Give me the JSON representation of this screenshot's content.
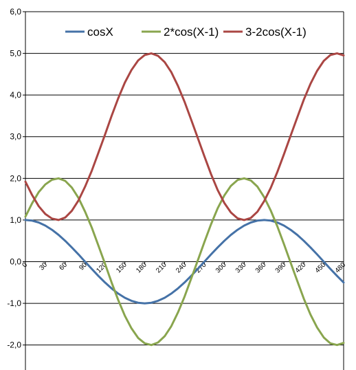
{
  "chart_data": {
    "type": "line",
    "title": "",
    "xlabel": "",
    "ylabel": "",
    "x": [
      0,
      10,
      20,
      30,
      40,
      50,
      60,
      70,
      80,
      90,
      100,
      110,
      120,
      130,
      140,
      150,
      160,
      170,
      180,
      190,
      200,
      210,
      220,
      230,
      240,
      250,
      260,
      270,
      280,
      290,
      300,
      310,
      320,
      330,
      340,
      350,
      360,
      370,
      380,
      390,
      400,
      410,
      420,
      430,
      440,
      450,
      460,
      470,
      480
    ],
    "x_ticks": [
      "0",
      "30",
      "60",
      "90",
      "120",
      "150",
      "180",
      "210",
      "240",
      "270",
      "300",
      "330",
      "360",
      "390",
      "420",
      "450",
      "480"
    ],
    "y_ticks": [
      "6,0",
      "5,0",
      "4,0",
      "3,0",
      "2,0",
      "1,0",
      "0,0",
      "-1,0",
      "-2,0"
    ],
    "ylim": [
      -2.6,
      6.0
    ],
    "xlim": [
      0,
      480
    ],
    "grid": "horizontal",
    "legend_position": "top",
    "series": [
      {
        "name": "cosX",
        "color": "#4572A7",
        "values": [
          1.0,
          0.985,
          0.94,
          0.866,
          0.766,
          0.643,
          0.5,
          0.342,
          0.174,
          0.0,
          -0.174,
          -0.342,
          -0.5,
          -0.643,
          -0.766,
          -0.866,
          -0.94,
          -0.985,
          -1.0,
          -0.985,
          -0.94,
          -0.866,
          -0.766,
          -0.643,
          -0.5,
          -0.342,
          -0.174,
          0.0,
          0.174,
          0.342,
          0.5,
          0.643,
          0.766,
          0.866,
          0.94,
          0.985,
          1.0,
          0.985,
          0.94,
          0.866,
          0.766,
          0.643,
          0.5,
          0.342,
          0.174,
          0.0,
          -0.174,
          -0.342,
          -0.5
        ]
      },
      {
        "name": "2*cos(X-1)",
        "color": "#89A54E",
        "values": [
          1.081,
          1.398,
          1.668,
          1.854,
          1.966,
          2.0,
          1.94,
          1.78,
          1.53,
          1.2,
          0.82,
          0.39,
          -0.05,
          -0.5,
          -0.92,
          -1.3,
          -1.6,
          -1.83,
          -1.96,
          -2.0,
          -1.94,
          -1.79,
          -1.55,
          -1.22,
          -0.84,
          -0.41,
          0.03,
          0.47,
          0.9,
          1.28,
          1.59,
          1.82,
          1.96,
          2.0,
          1.95,
          1.8,
          1.55,
          1.23,
          0.85,
          0.42,
          -0.02,
          -0.46,
          -0.89,
          -1.27,
          -1.58,
          -1.82,
          -1.96,
          -2.0,
          -1.95
        ]
      },
      {
        "name": "3-2cos(X-1)",
        "color": "#AA4643",
        "values": [
          1.919,
          1.602,
          1.332,
          1.146,
          1.034,
          1.0,
          1.06,
          1.22,
          1.47,
          1.8,
          2.18,
          2.61,
          3.05,
          3.5,
          3.92,
          4.3,
          4.6,
          4.83,
          4.96,
          5.0,
          4.94,
          4.79,
          4.55,
          4.22,
          3.84,
          3.41,
          2.97,
          2.53,
          2.1,
          1.72,
          1.41,
          1.18,
          1.04,
          1.0,
          1.05,
          1.2,
          1.45,
          1.77,
          2.15,
          2.58,
          3.02,
          3.46,
          3.89,
          4.27,
          4.58,
          4.82,
          4.96,
          5.0,
          4.95
        ]
      }
    ]
  }
}
